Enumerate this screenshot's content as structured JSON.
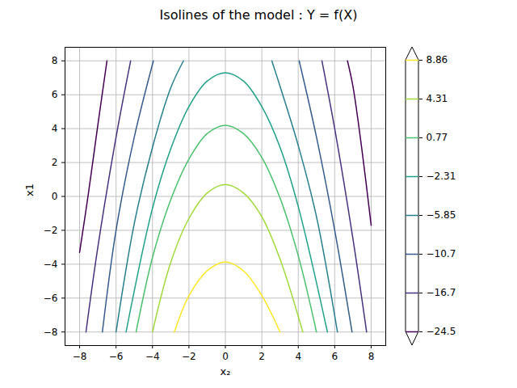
{
  "chart_data": {
    "type": "contour",
    "title": "Isolines of the model : Y = f(X)",
    "x_label": "x₂",
    "y_label": "x1",
    "xlim": [
      -8.8,
      8.8
    ],
    "ylim": [
      -8.8,
      8.8
    ],
    "xticks": [
      -8,
      -6,
      -4,
      -2,
      0,
      2,
      4,
      6,
      8
    ],
    "yticks": [
      -8,
      -6,
      -4,
      -2,
      0,
      2,
      4,
      6,
      8
    ],
    "grid": true,
    "series": [
      {
        "level": 8.86,
        "color": "#fde725",
        "branches": [
          {
            "x": [
              -2.8,
              -2,
              -1,
              0,
              1,
              2,
              3
            ],
            "y": [
              -8,
              -5.86,
              -4.39,
              -3.86,
              -4.4,
              -5.85,
              -8
            ]
          }
        ]
      },
      {
        "level": 4.31,
        "color": "#a0da39",
        "branches": [
          {
            "x": [
              -4,
              -3,
              -2,
              -1,
              0,
              1,
              2,
              3,
              4.25
            ],
            "y": [
              -8,
              -3.9,
              -1.3,
              0.2,
              0.7,
              0.2,
              -1.2,
              -3.7,
              -8
            ]
          }
        ]
      },
      {
        "level": 0.77,
        "color": "#4ac16d",
        "branches": [
          {
            "x": [
              -4.9,
              -4,
              -3,
              -2,
              -1,
              0,
              1,
              2,
              3,
              4,
              5
            ],
            "y": [
              -8,
              -3.6,
              -0.2,
              2.2,
              3.7,
              4.2,
              3.7,
              2.3,
              -0.1,
              -3.5,
              -8
            ]
          }
        ]
      },
      {
        "level": -2.31,
        "color": "#1fa187",
        "branches": [
          {
            "x": [
              -5.45,
              -4,
              -3,
              -2,
              -1,
              0,
              1,
              2,
              3,
              4,
              5.6
            ],
            "y": [
              -8,
              -0.7,
              2.8,
              5.3,
              6.8,
              7.3,
              6.8,
              5.3,
              2.9,
              -0.6,
              -8
            ]
          }
        ]
      },
      {
        "level": -5.85,
        "color": "#277f8e",
        "branches": [
          {
            "x": [
              -6,
              -5,
              -4,
              -3,
              -2.3
            ],
            "y": [
              -8,
              -1.6,
              2.9,
              6.4,
              8
            ]
          },
          {
            "x": [
              2.55,
              3,
              4,
              5,
              6.15
            ],
            "y": [
              8,
              6.5,
              3,
              -1.2,
              -8
            ]
          }
        ]
      },
      {
        "level": -10.7,
        "color": "#365c8d",
        "branches": [
          {
            "x": [
              -6.75,
              -6,
              -5,
              -3.95
            ],
            "y": [
              -8,
              -2,
              3.5,
              8
            ]
          },
          {
            "x": [
              4.05,
              5,
              6,
              6.95
            ],
            "y": [
              8,
              3.5,
              -2,
              -8
            ]
          }
        ]
      },
      {
        "level": -16.7,
        "color": "#46327e",
        "branches": [
          {
            "x": [
              -7.65,
              -7,
              -6,
              -5.2
            ],
            "y": [
              -8,
              -3,
              3.5,
              8
            ]
          },
          {
            "x": [
              5.3,
              6,
              7,
              7.75
            ],
            "y": [
              8,
              4,
              -2.5,
              -8
            ]
          }
        ]
      },
      {
        "level": -24.5,
        "color": "#440154",
        "branches": [
          {
            "x": [
              -8,
              -7.5,
              -7,
              -6.5
            ],
            "y": [
              -3.3,
              0.3,
              4.2,
              8
            ]
          },
          {
            "x": [
              6.7,
              7,
              7.5,
              8
            ],
            "y": [
              8,
              6.5,
              2.7,
              -1.7
            ]
          }
        ]
      }
    ]
  }
}
